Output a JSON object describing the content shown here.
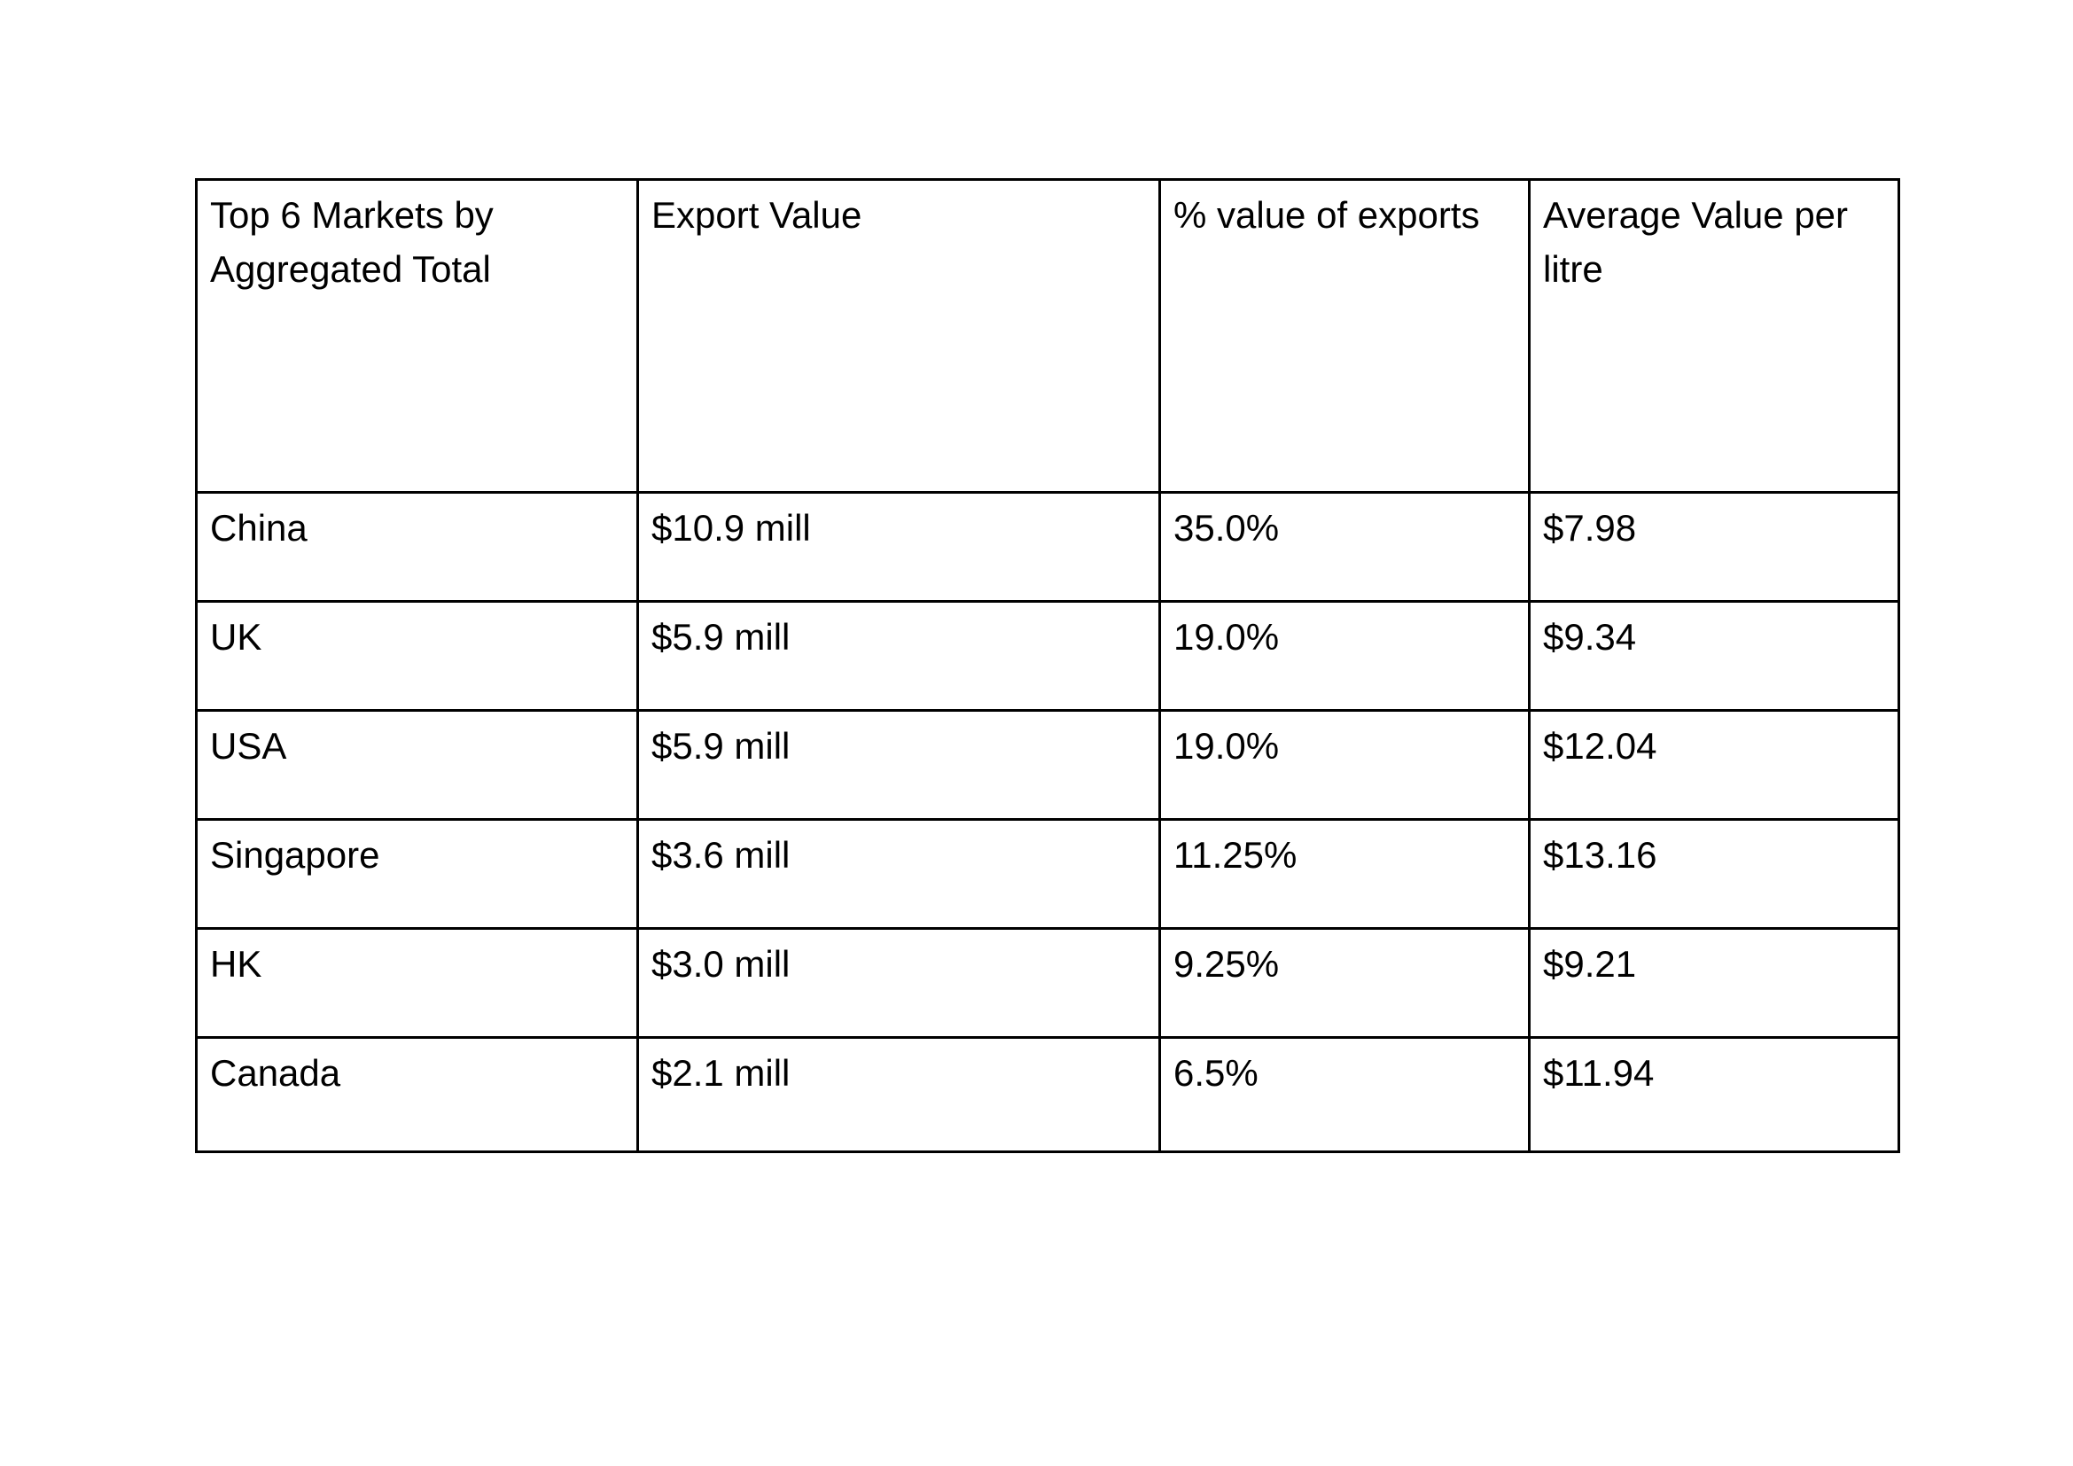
{
  "table": {
    "headers": [
      "Top 6 Markets by Aggregated Total",
      "Export Value",
      "% value of exports",
      "Average Value per litre"
    ],
    "rows": [
      [
        "China",
        "$10.9 mill",
        "35.0%",
        "$7.98"
      ],
      [
        "UK",
        "$5.9 mill",
        "19.0%",
        "$9.34"
      ],
      [
        "USA",
        "$5.9 mill",
        "19.0%",
        "$12.04"
      ],
      [
        "Singapore",
        "$3.6 mill",
        "11.25%",
        "$13.16"
      ],
      [
        "HK",
        "$3.0 mill",
        "9.25%",
        "$9.21"
      ],
      [
        "Canada",
        "$2.1 mill",
        "6.5%",
        "$11.94"
      ]
    ]
  }
}
